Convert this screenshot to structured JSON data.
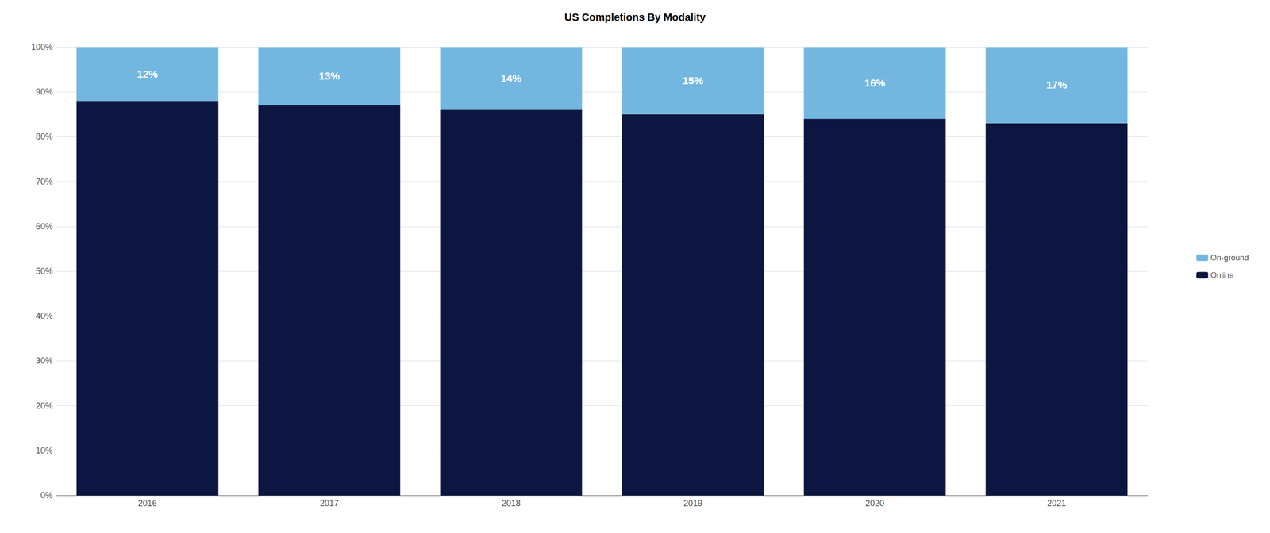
{
  "chart_data": {
    "type": "bar",
    "title": "US Completions By Modality",
    "categories": [
      "2016",
      "2017",
      "2018",
      "2019",
      "2020",
      "2021"
    ],
    "stacked": true,
    "series": [
      {
        "name": "Online",
        "color": "#0d1640",
        "values": [
          88,
          87,
          86,
          85,
          84,
          83
        ]
      },
      {
        "name": "On-ground",
        "color": "#73b7e0",
        "values": [
          12,
          13,
          14,
          15,
          16,
          17
        ],
        "data_labels": true,
        "value_labels": [
          "12%",
          "13%",
          "14%",
          "15%",
          "16%",
          "17%"
        ]
      }
    ],
    "ylim": [
      0,
      100
    ],
    "yticks": [
      {
        "value": 0,
        "label": "0%"
      },
      {
        "value": 10,
        "label": "10%"
      },
      {
        "value": 20,
        "label": "20%"
      },
      {
        "value": 30,
        "label": "30%"
      },
      {
        "value": 40,
        "label": "40%"
      },
      {
        "value": 50,
        "label": "50%"
      },
      {
        "value": 60,
        "label": "60%"
      },
      {
        "value": 70,
        "label": "70%"
      },
      {
        "value": 80,
        "label": "80%"
      },
      {
        "value": 90,
        "label": "90%"
      },
      {
        "value": 100,
        "label": "100%"
      }
    ],
    "grid": true,
    "legend": "right"
  }
}
